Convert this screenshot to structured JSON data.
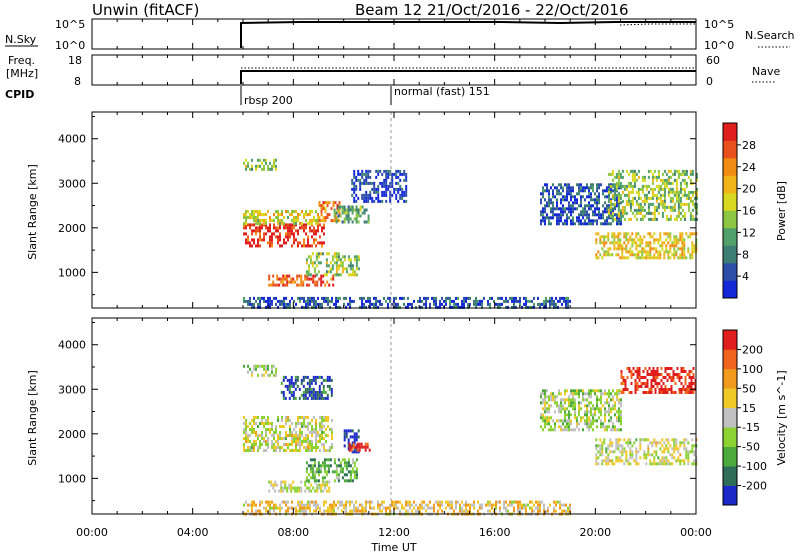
{
  "title_left": "Unwin (fitACF)",
  "title_right": "Beam 12   21/Oct/2016 - 22/Oct/2016",
  "header": {
    "nsky_label": "N.Sky",
    "nsky_ticks": [
      "10^5",
      "10^0"
    ],
    "nsearch_label": "N.Search",
    "nsearch_ticks": [
      "10^5",
      "10^0"
    ],
    "freq_label_line1": "Freq.",
    "freq_label_line2": "[MHz]",
    "freq_ticks": [
      "18",
      "8"
    ],
    "nave_label": "Nave",
    "nave_ticks": [
      "60",
      "0"
    ],
    "cpid_label": "CPID",
    "cpid_segments": [
      {
        "label": "rbsp 200",
        "start_hour": 6
      },
      {
        "label": "normal (fast) 151",
        "start_hour": 12
      }
    ]
  },
  "x_axis": {
    "label": "Time UT",
    "ticks": [
      "00:00",
      "04:00",
      "08:00",
      "12:00",
      "16:00",
      "20:00",
      "00:00"
    ],
    "tick_hours": [
      0,
      4,
      8,
      12,
      16,
      20,
      24
    ]
  },
  "panels": {
    "power": {
      "ylabel": "Slant Range [km]",
      "yticks": [
        "4000",
        "3000",
        "2000",
        "1000"
      ],
      "colorbar_label": "Power [dB]",
      "colorbar_ticks": [
        "28",
        "24",
        "20",
        "16",
        "12",
        "8",
        "4"
      ],
      "colors": [
        "#1428d8",
        "#2e4fa8",
        "#3d7e74",
        "#4fa06a",
        "#8cc642",
        "#d8d820",
        "#f0b419",
        "#f08c14",
        "#e8501e",
        "#e01e1e"
      ]
    },
    "velocity": {
      "ylabel": "Slant Range [km]",
      "yticks": [
        "4000",
        "3000",
        "2000",
        "1000"
      ],
      "colorbar_label": "Velocity [m s^-1]",
      "colorbar_ticks": [
        "200",
        "100",
        "50",
        "15",
        "-15",
        "-50",
        "-100",
        "-200"
      ],
      "colors": [
        "#1c28c8",
        "#2e6e58",
        "#4caa3c",
        "#8cd232",
        "#c0c0c0",
        "#f0c828",
        "#f09a1e",
        "#f0641e",
        "#e01e1e"
      ]
    }
  },
  "chart_data": {
    "type": "heatmap",
    "x_unit": "hours UT",
    "x_range": [
      0,
      24
    ],
    "y_unit": "km",
    "y_range": [
      200,
      4600
    ],
    "data_start_hour": 6,
    "mode_change_hour": 12,
    "power_regions": [
      {
        "t0": 6.0,
        "t1": 7.3,
        "r0": 3300,
        "r1": 3550,
        "level": 0.45
      },
      {
        "t0": 6.0,
        "t1": 9.2,
        "r0": 1600,
        "r1": 2100,
        "level": 0.95
      },
      {
        "t0": 6.0,
        "t1": 9.0,
        "r0": 2100,
        "r1": 2400,
        "level": 0.55
      },
      {
        "t0": 9.0,
        "t1": 9.8,
        "r0": 2150,
        "r1": 2600,
        "level": 0.75
      },
      {
        "t0": 7.0,
        "t1": 9.6,
        "r0": 700,
        "r1": 950,
        "level": 0.85
      },
      {
        "t0": 8.5,
        "t1": 10.6,
        "r0": 950,
        "r1": 1450,
        "level": 0.45
      },
      {
        "t0": 9.6,
        "t1": 11.0,
        "r0": 2100,
        "r1": 2500,
        "level": 0.35
      },
      {
        "t0": 10.3,
        "t1": 12.5,
        "r0": 2600,
        "r1": 3300,
        "level": 0.1
      },
      {
        "t0": 6.0,
        "t1": 19.0,
        "r0": 200,
        "r1": 450,
        "level": 0.15
      },
      {
        "t0": 17.8,
        "t1": 21.0,
        "r0": 2100,
        "r1": 3000,
        "level": 0.15
      },
      {
        "t0": 20.0,
        "t1": 24.0,
        "r0": 1300,
        "r1": 1900,
        "level": 0.6
      },
      {
        "t0": 20.5,
        "t1": 24.0,
        "r0": 2200,
        "r1": 3300,
        "level": 0.45
      }
    ],
    "velocity_regions": [
      {
        "t0": 6.0,
        "t1": 7.3,
        "r0": 3300,
        "r1": 3550,
        "level": 0.4
      },
      {
        "t0": 6.0,
        "t1": 9.5,
        "r0": 1600,
        "r1": 2400,
        "level": 0.5
      },
      {
        "t0": 7.0,
        "t1": 9.4,
        "r0": 700,
        "r1": 950,
        "level": 0.5
      },
      {
        "t0": 8.5,
        "t1": 10.5,
        "r0": 950,
        "r1": 1450,
        "level": 0.3
      },
      {
        "t0": 7.5,
        "t1": 9.5,
        "r0": 2800,
        "r1": 3300,
        "level": 0.1
      },
      {
        "t0": 10.0,
        "t1": 10.6,
        "r0": 1600,
        "r1": 2100,
        "level": 0.05
      },
      {
        "t0": 10.2,
        "t1": 11.0,
        "r0": 1650,
        "r1": 1800,
        "level": 0.95
      },
      {
        "t0": 6.0,
        "t1": 19.0,
        "r0": 200,
        "r1": 500,
        "level": 0.6
      },
      {
        "t0": 17.8,
        "t1": 21.0,
        "r0": 2100,
        "r1": 3000,
        "level": 0.45
      },
      {
        "t0": 20.0,
        "t1": 24.0,
        "r0": 1300,
        "r1": 1900,
        "level": 0.5
      },
      {
        "t0": 21.0,
        "t1": 24.0,
        "r0": 2900,
        "r1": 3500,
        "level": 0.95
      }
    ]
  }
}
